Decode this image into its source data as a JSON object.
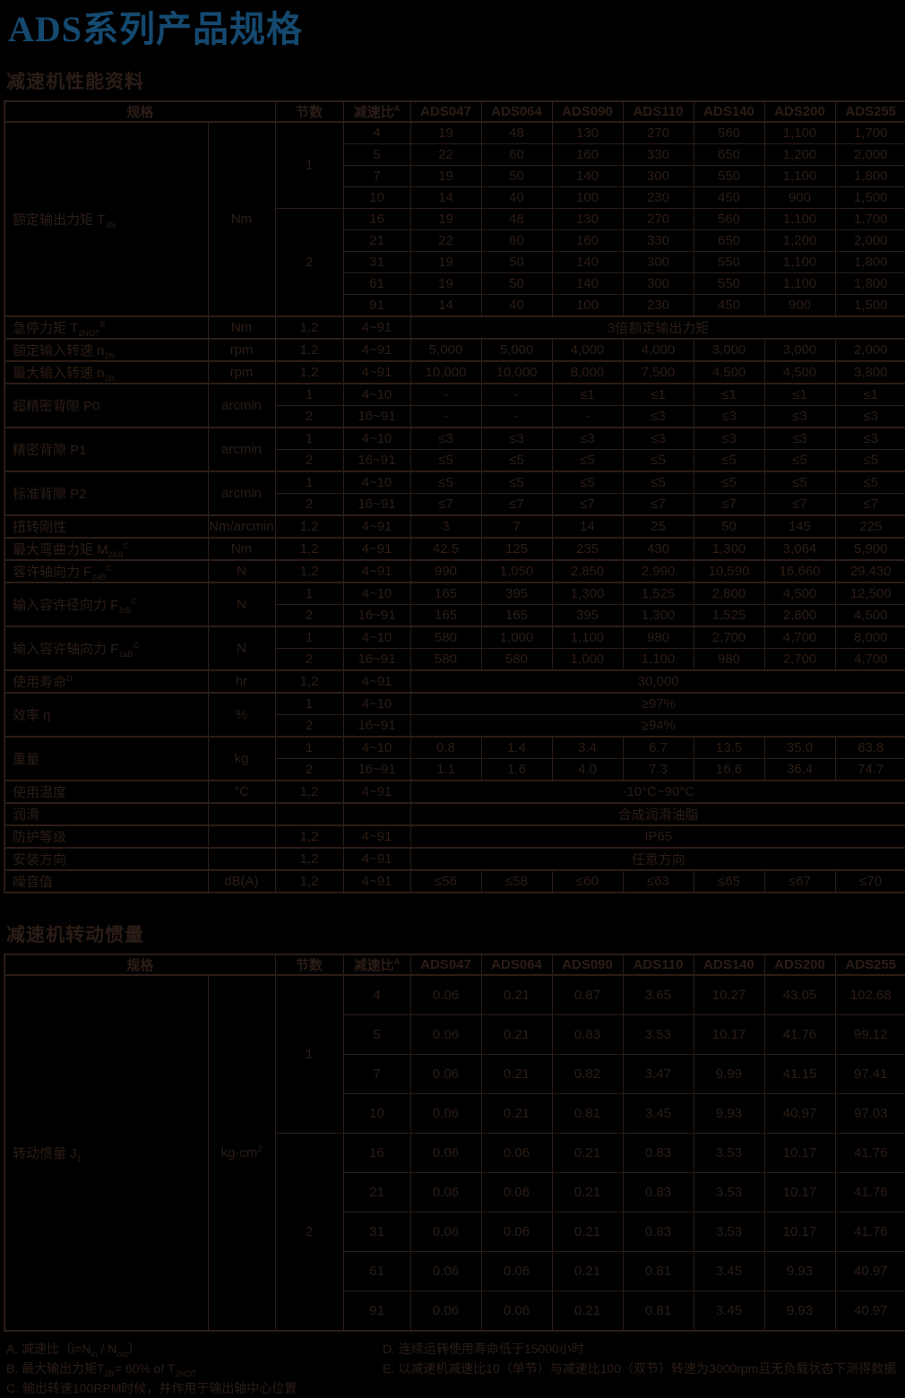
{
  "page_title": "ADS系列产品规格",
  "colors": {
    "title_blue": "#15496f",
    "ink": "#2b1d16",
    "background": "#000000"
  },
  "section1": {
    "heading": "减速机性能资料"
  },
  "section2": {
    "heading": "减速机转动惯量"
  },
  "tables": [
    {
      "id": "performance-table",
      "css": "t1",
      "header": [
        {
          "t": "规格",
          "c": 2
        },
        {
          "t": "节数"
        },
        {
          "t": "减速比^{A}"
        },
        {
          "t": "ADS047"
        },
        {
          "t": "ADS064"
        },
        {
          "t": "ADS090"
        },
        {
          "t": "ADS110"
        },
        {
          "t": "ADS140"
        },
        {
          "t": "ADS200"
        },
        {
          "t": "ADS255"
        }
      ],
      "rows": [
        [
          {
            "t": "额定输出力矩 T_{2N}",
            "r": 9,
            "l": 1
          },
          {
            "t": "Nm",
            "r": 9
          },
          {
            "t": "1",
            "r": 4
          },
          "4",
          "19",
          "48",
          "130",
          "270",
          "560",
          "1,100",
          "1,700"
        ],
        [
          "5",
          "22",
          "60",
          "160",
          "330",
          "650",
          "1,200",
          "2,000"
        ],
        [
          "7",
          "19",
          "50",
          "140",
          "300",
          "550",
          "1,100",
          "1,800"
        ],
        [
          "10",
          "14",
          "40",
          "100",
          "230",
          "450",
          "900",
          "1,500"
        ],
        [
          {
            "t": "2",
            "r": 5
          },
          "16",
          "19",
          "48",
          "130",
          "270",
          "560",
          "1,100",
          "1,700"
        ],
        [
          "21",
          "22",
          "60",
          "160",
          "330",
          "650",
          "1,200",
          "2,000"
        ],
        [
          "31",
          "19",
          "50",
          "140",
          "300",
          "550",
          "1,100",
          "1,800"
        ],
        [
          "61",
          "19",
          "50",
          "140",
          "300",
          "550",
          "1,100",
          "1,800"
        ],
        [
          "91",
          "14",
          "40",
          "100",
          "230",
          "450",
          "900",
          "1,500"
        ],
        [
          {
            "t": "急停力矩 T_{2NOT}^{B}",
            "l": 1
          },
          "Nm",
          "1,2",
          "4~91",
          {
            "t": "3倍额定输出力矩",
            "c": 7
          }
        ],
        [
          {
            "t": "额定输入转速 n_{1N}",
            "l": 1
          },
          "rpm",
          "1,2",
          "4~91",
          "5,000",
          "5,000",
          "4,000",
          "4,000",
          "3,000",
          "3,000",
          "2,000"
        ],
        [
          {
            "t": "最大输入转速 n_{1B}",
            "l": 1
          },
          "rpm",
          "1,2",
          "4~91",
          "10,000",
          "10,000",
          "8,000",
          "7,500",
          "4,500",
          "4,500",
          "3,800"
        ],
        [
          {
            "t": "超精密背隙 P0",
            "r": 2,
            "l": 1
          },
          {
            "t": "arcmin",
            "r": 2
          },
          "1",
          "4~10",
          "-",
          "-",
          "≤1",
          "≤1",
          "≤1",
          "≤1",
          "≤1"
        ],
        [
          "2",
          "16~91",
          "-",
          "-",
          "-",
          "≤3",
          "≤3",
          "≤3",
          "≤3"
        ],
        [
          {
            "t": "精密背隙 P1",
            "r": 2,
            "l": 1
          },
          {
            "t": "arcmin",
            "r": 2
          },
          "1",
          "4~10",
          "≤3",
          "≤3",
          "≤3",
          "≤3",
          "≤3",
          "≤3",
          "≤3"
        ],
        [
          "2",
          "16~91",
          "≤5",
          "≤5",
          "≤5",
          "≤5",
          "≤5",
          "≤5",
          "≤5"
        ],
        [
          {
            "t": "标准背隙 P2",
            "r": 2,
            "l": 1
          },
          {
            "t": "arcmin",
            "r": 2
          },
          "1",
          "4~10",
          "≤5",
          "≤5",
          "≤5",
          "≤5",
          "≤5",
          "≤5",
          "≤5"
        ],
        [
          "2",
          "16~91",
          "≤7",
          "≤7",
          "≤7",
          "≤7",
          "≤7",
          "≤7",
          "≤7"
        ],
        [
          {
            "t": "扭转刚性",
            "l": 1
          },
          "Nm/arcmin",
          "1,2",
          "4~91",
          "3",
          "7",
          "14",
          "25",
          "50",
          "145",
          "225"
        ],
        [
          {
            "t": "最大弯曲力矩 M_{2KB}^{C}",
            "l": 1
          },
          "Nm",
          "1,2",
          "4~91",
          "42.5",
          "125",
          "235",
          "430",
          "1,300",
          "3,064",
          "5,900"
        ],
        [
          {
            "t": "容许轴向力 F_{2aB}^{C}",
            "l": 1
          },
          "N",
          "1,2",
          "4~91",
          "990",
          "1,050",
          "2,850",
          "2,990",
          "10,590",
          "16,660",
          "29,430"
        ],
        [
          {
            "t": "输入容许径向力 F_{1rB}^{C}",
            "r": 2,
            "l": 1
          },
          {
            "t": "N",
            "r": 2
          },
          "1",
          "4~10",
          "165",
          "395",
          "1,300",
          "1,525",
          "2,800",
          "4,500",
          "12,500"
        ],
        [
          "2",
          "16~91",
          "165",
          "165",
          "395",
          "1,300",
          "1,525",
          "2,800",
          "4,500"
        ],
        [
          {
            "t": "输入容许轴向力 F_{1aB}^{C}",
            "r": 2,
            "l": 1
          },
          {
            "t": "N",
            "r": 2
          },
          "1",
          "4~10",
          "580",
          "1,000",
          "1,100",
          "980",
          "2,700",
          "4,700",
          "8,000"
        ],
        [
          "2",
          "16~91",
          "580",
          "580",
          "1,000",
          "1,100",
          "980",
          "2,700",
          "4,700"
        ],
        [
          {
            "t": "使用寿命^{D}",
            "l": 1
          },
          "hr",
          "1,2",
          "4~91",
          {
            "t": "30,000",
            "c": 7
          }
        ],
        [
          {
            "t": "效率 η",
            "r": 2,
            "l": 1
          },
          {
            "t": "%",
            "r": 2
          },
          "1",
          "4~10",
          {
            "t": "≥97%",
            "c": 7
          }
        ],
        [
          "2",
          "16~91",
          {
            "t": "≥94%",
            "c": 7
          }
        ],
        [
          {
            "t": "重量",
            "r": 2,
            "l": 1
          },
          {
            "t": "kg",
            "r": 2
          },
          "1",
          "4~10",
          "0.8",
          "1.4",
          "3.4",
          "6.7",
          "13.5",
          "35.0",
          "63.8"
        ],
        [
          "2",
          "16~91",
          "1.1",
          "1.6",
          "4.0",
          "7.3",
          "16.6",
          "36.4",
          "74.7"
        ],
        [
          {
            "t": "使用温度",
            "l": 1
          },
          "°C",
          "1,2",
          "4~91",
          {
            "t": "-10°C~90°C",
            "c": 7
          }
        ],
        [
          {
            "t": "润滑",
            "l": 1
          },
          "",
          "",
          "",
          {
            "t": "合成润滑油脂",
            "c": 7
          }
        ],
        [
          {
            "t": "防护等级",
            "l": 1
          },
          "",
          "1,2",
          "4~91",
          {
            "t": "IP65",
            "c": 7
          }
        ],
        [
          {
            "t": "安装方向",
            "l": 1
          },
          "",
          "1,2",
          "4~91",
          {
            "t": "任意方向",
            "c": 7
          }
        ],
        [
          {
            "t": "噪音值",
            "l": 1
          },
          "dB(A)",
          "1,2",
          "4~91",
          "≤56",
          "≤58",
          "≤60",
          "≤63",
          "≤65",
          "≤67",
          "≤70"
        ]
      ]
    },
    {
      "id": "inertia-table",
      "css": "t2",
      "header": [
        {
          "t": "规格",
          "c": 2
        },
        {
          "t": "节数"
        },
        {
          "t": "减速比^{A}"
        },
        {
          "t": "ADS047"
        },
        {
          "t": "ADS064"
        },
        {
          "t": "ADS090"
        },
        {
          "t": "ADS110"
        },
        {
          "t": "ADS140"
        },
        {
          "t": "ADS200"
        },
        {
          "t": "ADS255"
        }
      ],
      "rows": [
        [
          {
            "t": "转动惯量 J_{1}",
            "r": 9,
            "l": 1
          },
          {
            "t": "kg·cm^{2}",
            "r": 9
          },
          {
            "t": "1",
            "r": 4
          },
          "4",
          "0.06",
          "0.21",
          "0.87",
          "3.65",
          "10.27",
          "43.05",
          "102.68"
        ],
        [
          "5",
          "0.06",
          "0.21",
          "0.83",
          "3.53",
          "10.17",
          "41.76",
          "99.12"
        ],
        [
          "7",
          "0.06",
          "0.21",
          "0.82",
          "3.47",
          "9.99",
          "41.15",
          "97.41"
        ],
        [
          "10",
          "0.06",
          "0.21",
          "0.81",
          "3.45",
          "9.93",
          "40.97",
          "97.03"
        ],
        [
          {
            "t": "2",
            "r": 5
          },
          "16",
          "0.06",
          "0.06",
          "0.21",
          "0.83",
          "3.53",
          "10.17",
          "41.76"
        ],
        [
          "21",
          "0.06",
          "0.06",
          "0.21",
          "0.83",
          "3.53",
          "10.17",
          "41.76"
        ],
        [
          "31",
          "0.06",
          "0.06",
          "0.21",
          "0.83",
          "3.53",
          "10.17",
          "41.76"
        ],
        [
          "61",
          "0.06",
          "0.06",
          "0.21",
          "0.81",
          "3.45",
          "9.93",
          "40.97"
        ],
        [
          "91",
          "0.06",
          "0.06",
          "0.21",
          "0.81",
          "3.45",
          "9.93",
          "40.97"
        ]
      ]
    }
  ],
  "footnotes": {
    "left": [
      "A. 减速比（i=N_{in} / N_{out}）",
      "B. 最大输出力矩T_{2B}= 60% of T_{2NOT}",
      "C. 输出转速100RPM时候，并作用于输出轴中心位置"
    ],
    "right": [
      "D. 连续运转使用寿命低于15000小时",
      "E. 以减速机减速比10（单节）与减速比100（双节）转速为3000rpm且无负载状态下测得数据"
    ]
  }
}
